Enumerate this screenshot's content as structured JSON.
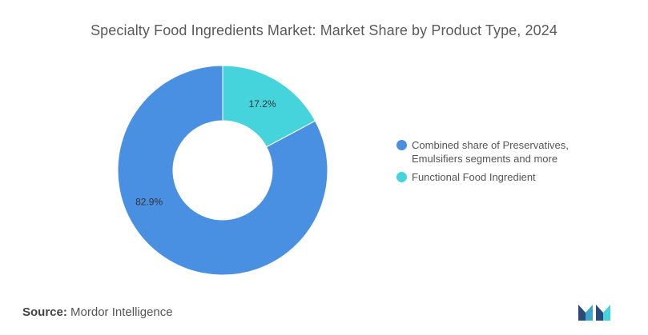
{
  "chart_title": "Specialty Food Ingredients Market: Market Share by Product Type, 2024",
  "source": {
    "label": "Source:",
    "value": "Mordor Intelligence"
  },
  "colors": {
    "series": [
      "#4a90e2",
      "#45d3dc"
    ],
    "title": "#5a5a5a",
    "text": "#555555"
  },
  "legend": {
    "items": [
      {
        "label_lines": [
          "Combined share of Preservatives,",
          "Emulsifiers segments and more"
        ],
        "color": "#4a90e2"
      },
      {
        "label_lines": [
          "Functional Food Ingredient"
        ],
        "color": "#45d3dc"
      }
    ]
  },
  "chart_data": {
    "type": "pie",
    "style": "donut",
    "title": "Specialty Food Ingredients Market: Market Share by Product Type, 2024",
    "categories": [
      "Combined share of Preservatives, Emulsifiers segments and more",
      "Functional Food Ingredient"
    ],
    "values": [
      82.9,
      17.2
    ],
    "data_labels": [
      "82.9%",
      "17.2%"
    ],
    "legend_position": "right"
  },
  "logo": {
    "icon": "mordor-intelligence-logo-icon"
  }
}
